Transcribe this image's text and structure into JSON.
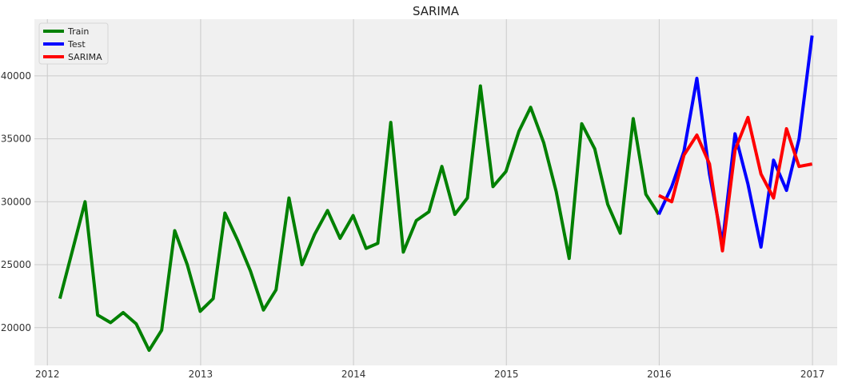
{
  "chart_data": {
    "type": "line",
    "title": "SARIMA",
    "xlabel": "",
    "ylabel": "",
    "xlim": [
      "2011-12-01",
      "2017-03-01"
    ],
    "ylim": [
      17000,
      44500
    ],
    "x_ticks": [
      "2012",
      "2013",
      "2014",
      "2015",
      "2016",
      "2017"
    ],
    "y_ticks": [
      "20000",
      "25000",
      "30000",
      "35000",
      "40000"
    ],
    "grid": true,
    "legend_position": "top-left",
    "series": [
      {
        "name": "Train",
        "color": "#008000",
        "x": [
          "2012-01-31",
          "2012-02-29",
          "2012-03-31",
          "2012-04-30",
          "2012-05-31",
          "2012-06-30",
          "2012-07-31",
          "2012-08-31",
          "2012-09-30",
          "2012-10-31",
          "2012-11-30",
          "2012-12-31",
          "2013-01-31",
          "2013-02-28",
          "2013-03-31",
          "2013-04-30",
          "2013-05-31",
          "2013-06-30",
          "2013-07-31",
          "2013-08-31",
          "2013-09-30",
          "2013-10-31",
          "2013-11-30",
          "2013-12-31",
          "2014-01-31",
          "2014-02-28",
          "2014-03-31",
          "2014-04-30",
          "2014-05-31",
          "2014-06-30",
          "2014-07-31",
          "2014-08-31",
          "2014-09-30",
          "2014-10-31",
          "2014-11-30",
          "2014-12-31",
          "2015-01-31",
          "2015-02-28",
          "2015-03-31",
          "2015-04-30",
          "2015-05-31",
          "2015-06-30",
          "2015-07-31",
          "2015-08-31",
          "2015-09-30",
          "2015-10-31",
          "2015-11-30",
          "2015-12-31"
        ],
        "values": [
          22300,
          26000,
          30000,
          21000,
          20400,
          21200,
          20300,
          18200,
          19800,
          27700,
          25000,
          21300,
          22300,
          29100,
          26900,
          24500,
          21400,
          23000,
          30300,
          25000,
          27400,
          29300,
          27100,
          28900,
          26300,
          26700,
          36300,
          26000,
          28500,
          29200,
          32800,
          29000,
          30300,
          39200,
          31200,
          32400,
          35600,
          37500,
          34700,
          30800,
          25500,
          36200,
          34200,
          29800,
          27500,
          36600,
          30600,
          29000
        ]
      },
      {
        "name": "Test",
        "color": "#0000ff",
        "x": [
          "2015-12-31",
          "2016-01-31",
          "2016-02-29",
          "2016-03-31",
          "2016-04-30",
          "2016-05-31",
          "2016-06-30",
          "2016-07-31",
          "2016-08-31",
          "2016-09-30",
          "2016-10-31",
          "2016-11-30",
          "2016-12-31"
        ],
        "values": [
          29000,
          31200,
          34000,
          39800,
          32200,
          26700,
          35400,
          31400,
          26400,
          33300,
          30900,
          35000,
          43200
        ]
      },
      {
        "name": "SARIMA",
        "color": "#ff0000",
        "x": [
          "2015-12-31",
          "2016-01-31",
          "2016-02-29",
          "2016-03-31",
          "2016-04-30",
          "2016-05-31",
          "2016-06-30",
          "2016-07-31",
          "2016-08-31",
          "2016-09-30",
          "2016-10-31",
          "2016-11-30",
          "2016-12-31"
        ],
        "values": [
          30500,
          30000,
          33700,
          35300,
          33000,
          26100,
          34100,
          36700,
          32200,
          30300,
          35800,
          32800,
          33000
        ]
      }
    ]
  }
}
